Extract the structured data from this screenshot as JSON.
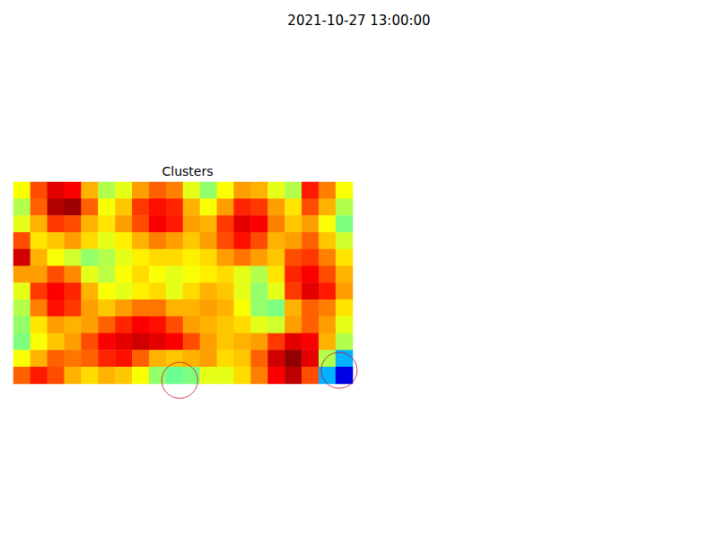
{
  "chart_data": {
    "type": "heatmap",
    "title": "2021-10-27 13:00:00",
    "subtitle": "Clusters",
    "tick_labels": false,
    "xlim": [
      -0.5,
      19.5
    ],
    "ylim": [
      -0.5,
      11.5
    ],
    "color_range": [
      0,
      1
    ],
    "cells": [
      [
        0.62,
        0.8,
        0.9,
        0.88,
        0.7,
        0.55,
        0.6,
        0.72,
        0.78,
        0.75,
        0.6,
        0.52,
        0.62,
        0.72,
        0.7,
        0.6,
        0.55,
        0.85,
        0.75,
        0.62
      ],
      [
        0.55,
        0.78,
        0.95,
        0.97,
        0.78,
        0.62,
        0.68,
        0.82,
        0.86,
        0.84,
        0.7,
        0.62,
        0.72,
        0.84,
        0.82,
        0.72,
        0.65,
        0.8,
        0.7,
        0.55
      ],
      [
        0.6,
        0.7,
        0.82,
        0.8,
        0.7,
        0.65,
        0.72,
        0.8,
        0.88,
        0.85,
        0.72,
        0.7,
        0.82,
        0.9,
        0.88,
        0.75,
        0.68,
        0.72,
        0.62,
        0.5
      ],
      [
        0.8,
        0.65,
        0.68,
        0.72,
        0.66,
        0.6,
        0.64,
        0.7,
        0.75,
        0.72,
        0.68,
        0.72,
        0.8,
        0.86,
        0.8,
        0.7,
        0.72,
        0.78,
        0.68,
        0.58
      ],
      [
        0.92,
        0.7,
        0.62,
        0.58,
        0.52,
        0.55,
        0.6,
        0.64,
        0.66,
        0.66,
        0.64,
        0.66,
        0.72,
        0.76,
        0.72,
        0.68,
        0.8,
        0.82,
        0.75,
        0.65
      ],
      [
        0.72,
        0.72,
        0.8,
        0.74,
        0.6,
        0.56,
        0.62,
        0.66,
        0.62,
        0.6,
        0.62,
        0.64,
        0.66,
        0.6,
        0.55,
        0.65,
        0.84,
        0.88,
        0.8,
        0.7
      ],
      [
        0.6,
        0.82,
        0.88,
        0.84,
        0.7,
        0.62,
        0.6,
        0.64,
        0.66,
        0.6,
        0.66,
        0.7,
        0.68,
        0.6,
        0.52,
        0.6,
        0.82,
        0.9,
        0.85,
        0.72
      ],
      [
        0.55,
        0.75,
        0.86,
        0.82,
        0.72,
        0.68,
        0.72,
        0.76,
        0.76,
        0.7,
        0.7,
        0.72,
        0.7,
        0.62,
        0.52,
        0.5,
        0.7,
        0.78,
        0.75,
        0.65
      ],
      [
        0.52,
        0.65,
        0.72,
        0.7,
        0.72,
        0.78,
        0.84,
        0.88,
        0.86,
        0.8,
        0.72,
        0.7,
        0.68,
        0.66,
        0.6,
        0.58,
        0.72,
        0.78,
        0.72,
        0.6
      ],
      [
        0.5,
        0.62,
        0.68,
        0.72,
        0.8,
        0.88,
        0.9,
        0.92,
        0.9,
        0.88,
        0.8,
        0.72,
        0.68,
        0.7,
        0.72,
        0.82,
        0.9,
        0.88,
        0.7,
        0.55
      ],
      [
        0.62,
        0.7,
        0.78,
        0.76,
        0.78,
        0.84,
        0.86,
        0.78,
        0.7,
        0.68,
        0.7,
        0.72,
        0.66,
        0.68,
        0.78,
        0.92,
        0.98,
        0.9,
        0.55,
        0.3
      ],
      [
        0.78,
        0.85,
        0.8,
        0.7,
        0.66,
        0.7,
        0.68,
        0.62,
        0.52,
        0.48,
        0.5,
        0.6,
        0.6,
        0.66,
        0.75,
        0.88,
        0.94,
        0.8,
        0.3,
        0.1
      ]
    ],
    "clusters": [
      {
        "x": 9.3,
        "y": 11.3
      },
      {
        "x": 18.7,
        "y": 10.7
      }
    ],
    "cluster_color": "#c8102e",
    "marker": "circle"
  }
}
